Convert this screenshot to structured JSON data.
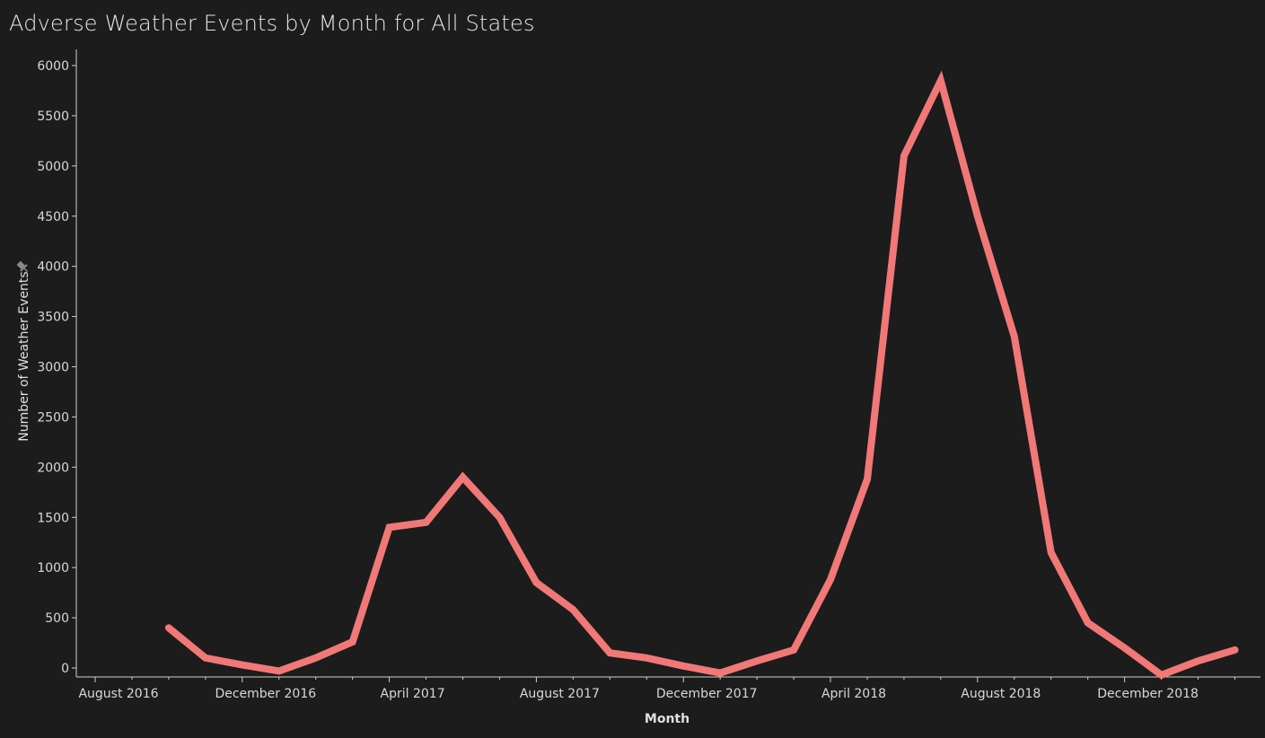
{
  "title": "Adverse Weather Events by Month for All States",
  "colors": {
    "background": "#1c1c1c",
    "line": "#f07876",
    "axis": "#cfcfcf",
    "text": "#d8d8d8"
  },
  "icons": {
    "y_axis_pin": "pin-icon"
  },
  "chart_data": {
    "type": "line",
    "title": "Adverse Weather Events by Month for All States",
    "xlabel": "Month",
    "ylabel": "Number of Weather Events",
    "ylim": [
      -80,
      6150
    ],
    "yticks": [
      0,
      500,
      1000,
      1500,
      2000,
      2500,
      3000,
      3500,
      4000,
      4500,
      5000,
      5500,
      6000
    ],
    "xlim": [
      "2016-07",
      "2019-04"
    ],
    "xticks": [
      "August 2016",
      "December 2016",
      "April 2017",
      "August 2017",
      "December 2017",
      "April 2018",
      "August 2018",
      "December 2018"
    ],
    "grid": false,
    "series": [
      {
        "x": [
          "2016-09",
          "2016-10",
          "2016-11",
          "2016-12",
          "2017-01",
          "2017-02",
          "2017-03",
          "2017-04",
          "2017-05",
          "2017-06",
          "2017-07",
          "2017-08",
          "2017-09",
          "2017-10",
          "2017-11",
          "2017-12",
          "2018-01",
          "2018-02",
          "2018-03",
          "2018-04",
          "2018-05",
          "2018-06",
          "2018-07",
          "2018-08",
          "2018-09",
          "2018-10",
          "2018-11",
          "2018-12",
          "2019-01",
          "2019-02"
        ],
        "values": [
          400,
          100,
          30,
          -30,
          100,
          260,
          1400,
          1450,
          1900,
          1500,
          850,
          580,
          150,
          100,
          20,
          -50,
          70,
          180,
          880,
          1880,
          5100,
          5850,
          4500,
          3300,
          1150,
          450,
          200,
          -70,
          70,
          180
        ]
      }
    ]
  }
}
